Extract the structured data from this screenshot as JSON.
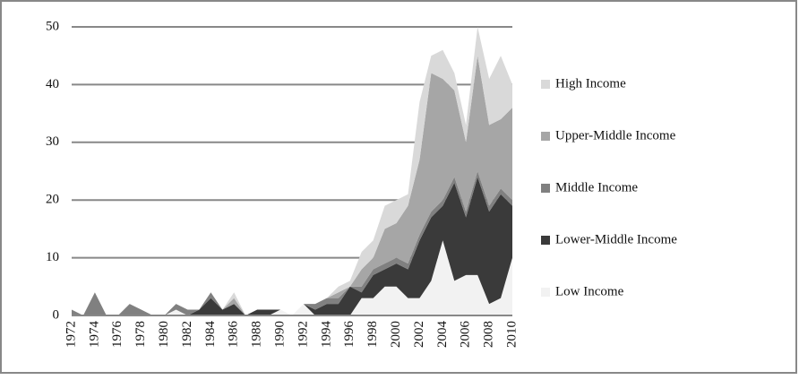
{
  "chart_data": {
    "type": "stacked_area",
    "categories": [
      "1972",
      null,
      "1974",
      null,
      "1976",
      null,
      "1978",
      null,
      "1980",
      null,
      "1982",
      null,
      "1984",
      null,
      "1986",
      null,
      "1988",
      null,
      "1990",
      null,
      "1992",
      null,
      "1994",
      null,
      "1996",
      null,
      "1998",
      null,
      "2000",
      null,
      "2002",
      null,
      "2004",
      null,
      "2006",
      null,
      "2008",
      null,
      "2010"
    ],
    "series": [
      {
        "name": "Low Income",
        "color": "#f2f2f2",
        "values": [
          0,
          0,
          0,
          0,
          0,
          0,
          0,
          0,
          0,
          1,
          0,
          0,
          0,
          0,
          0,
          0,
          0,
          0,
          1,
          0,
          2,
          0,
          0,
          0,
          0,
          3,
          3,
          5,
          5,
          3,
          3,
          6,
          13,
          6,
          7,
          7,
          2,
          3,
          10
        ]
      },
      {
        "name": "Lower-Middle Income",
        "color": "#3a3a3a",
        "values": [
          0,
          0,
          0,
          0,
          0,
          0,
          0,
          0,
          0,
          0,
          0,
          1,
          3,
          1,
          2,
          0,
          1,
          1,
          0,
          0,
          0,
          1,
          2,
          2,
          5,
          1,
          4,
          3,
          4,
          5,
          10,
          11,
          6,
          17,
          10,
          17,
          16,
          18,
          9
        ]
      },
      {
        "name": "Middle Income",
        "color": "#808080",
        "values": [
          1,
          0,
          4,
          0,
          0,
          2,
          1,
          0,
          0,
          1,
          1,
          0,
          1,
          0,
          0,
          0,
          0,
          0,
          0,
          0,
          0,
          1,
          1,
          1,
          0,
          1,
          1,
          1,
          1,
          1,
          1,
          1,
          1,
          1,
          1,
          1,
          1,
          1,
          1
        ]
      },
      {
        "name": "Upper-Middle Income",
        "color": "#a6a6a6",
        "values": [
          0,
          0,
          0,
          0,
          0,
          0,
          0,
          0,
          0,
          0,
          0,
          0,
          0,
          0,
          1,
          0,
          0,
          0,
          0,
          0,
          0,
          0,
          0,
          1,
          0,
          3,
          2,
          6,
          6,
          10,
          13,
          24,
          21,
          15,
          12,
          20,
          14,
          12,
          16
        ]
      },
      {
        "name": "High Income",
        "color": "#d9d9d9",
        "values": [
          0,
          0,
          0,
          0,
          0,
          0,
          0,
          0,
          0,
          0,
          0,
          0,
          0,
          0,
          1,
          0,
          0,
          0,
          0,
          0,
          0,
          0,
          0,
          1,
          1,
          3,
          3,
          4,
          4,
          2,
          10,
          3,
          5,
          3,
          3,
          5,
          8,
          11,
          4
        ]
      }
    ],
    "ylim": [
      0,
      50
    ],
    "yticks": [
      0,
      10,
      20,
      30,
      40,
      50
    ],
    "grid": true
  }
}
